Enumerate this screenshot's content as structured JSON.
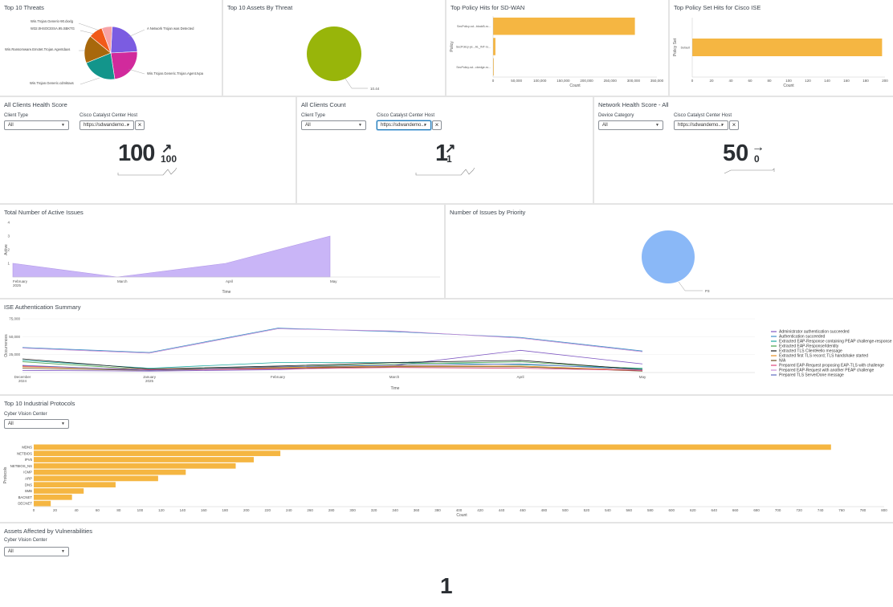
{
  "panels": {
    "top_threats": {
      "title": "Top 10 Threats",
      "labels": [
        "Win.Trojan.Generic-90.dxxlg",
        "W32.0HSOCEISA.95.SBKTG",
        "A Network Trojan was Detected",
        "Win.Ransomware.Emotet.Trojan.Agentdaxs",
        "Win.Trojan.Generic.cdmktaxs",
        "Win.Trojan.Generic.Trojan.Agent.tvpa"
      ],
      "slices": [
        {
          "value": 22,
          "color": "#7b5ce1"
        },
        {
          "value": 22,
          "color": "#d12a9c"
        },
        {
          "value": 20,
          "color": "#13958b"
        },
        {
          "value": 16,
          "color": "#a8680c"
        },
        {
          "value": 8,
          "color": "#f15a19"
        },
        {
          "value": 6,
          "color": "#f7a3a6"
        }
      ]
    },
    "top_assets": {
      "title": "Top 10 Assets By Threat",
      "label": "10.44",
      "color": "#98b50a"
    },
    "policy_sdwan": {
      "title": "Top Policy Hits for SD-WAN",
      "chart_data": {
        "type": "bar",
        "orientation": "horizontal",
        "categories": [
          "SecPolicy-sd...blockB-ro...",
          "SecPolicy-ye...AL_INT-ro...",
          "SecPolicy-sd...ckedge-ro..."
        ],
        "values": [
          303000,
          5000,
          1500
        ],
        "xlabel": "Count",
        "ylabel": "Policy",
        "xlim": [
          0,
          350000
        ],
        "ticks": [
          "0",
          "50,000",
          "100,000",
          "150,000",
          "200,000",
          "250,000",
          "300,000",
          "350,000"
        ]
      }
    },
    "policy_ise": {
      "title": "Top Policy Set Hits for Cisco ISE",
      "chart_data": {
        "type": "bar",
        "orientation": "horizontal",
        "categories": [
          "Default"
        ],
        "values": [
          197
        ],
        "xlabel": "Count",
        "ylabel": "Policy Set",
        "xlim": [
          0,
          200
        ],
        "ticks": [
          "0",
          "20",
          "40",
          "60",
          "80",
          "100",
          "120",
          "140",
          "160",
          "180",
          "200"
        ]
      }
    },
    "clients_health": {
      "title": "All Clients Health Score",
      "filter1_label": "Client Type",
      "filter1_value": "All",
      "filter2_label": "Cisco Catalyst Center Host",
      "filter2_value": "https://sdwandemo...",
      "value": "100",
      "delta": "100",
      "arrow": "↗"
    },
    "clients_count": {
      "title": "All Clients Count",
      "filter1_label": "Client Type",
      "filter1_value": "All",
      "filter2_label": "Cisco Catalyst Center Host",
      "filter2_value": "https://sdwandemo...",
      "value": "1",
      "delta": "1",
      "arrow": "↗"
    },
    "network_health": {
      "title": "Network Health Score - All",
      "filter1_label": "Device Category",
      "filter1_value": "All",
      "filter2_label": "Cisco Catalyst Center Host",
      "filter2_value": "https://sdwandemo...",
      "value": "50",
      "delta": "0",
      "arrow": "→"
    },
    "active_issues": {
      "title": "Total Number of Active Issues",
      "chart_data": {
        "type": "area",
        "x": [
          "February\n2025",
          "March",
          "April",
          "May"
        ],
        "values": [
          1,
          0,
          1,
          3
        ],
        "ylim": [
          0,
          4
        ],
        "yticks": [
          "4",
          "3",
          "2",
          "1"
        ],
        "xlabel": "Time",
        "ylabel": "Active",
        "color": "#c9b5f7"
      }
    },
    "issues_priority": {
      "title": "Number of Issues by Priority",
      "label": "P3",
      "color": "#8ab8f7"
    },
    "ise_auth": {
      "title": "ISE Authentication Summary",
      "chart_data": {
        "type": "line",
        "x": [
          "December\n2024",
          "January\n2025",
          "February",
          "March",
          "April",
          "May"
        ],
        "ylim": [
          0,
          75000
        ],
        "yticks": [
          "75,000",
          "50,000",
          "25,000"
        ],
        "xlabel": "Time",
        "ylabel": "Occurrences",
        "series": [
          {
            "name": "Administrator authentication succeeded",
            "color": "#7e57c2",
            "values": [
              3000,
              2000,
              4000,
              10000,
              31000,
              12000
            ]
          },
          {
            "name": "Authentication succeeded",
            "color": "#3b8ec7",
            "values": [
              35000,
              28000,
              62000,
              57000,
              49000,
              30000
            ]
          },
          {
            "name": "Extracted EAP-Response containing PEAP challenge-response",
            "color": "#1aa89e",
            "values": [
              17000,
              6000,
              14000,
              14000,
              11000,
              6000
            ]
          },
          {
            "name": "Extracted EAP-Response/Identity",
            "color": "#43a047",
            "values": [
              15000,
              4000,
              8000,
              12000,
              15000,
              5000
            ]
          },
          {
            "name": "Extracted TLS ClientHello message",
            "color": "#1b1b1b",
            "values": [
              19000,
              5000,
              9000,
              14000,
              17000,
              4000
            ]
          },
          {
            "name": "Extracted first TLS record; TLS handshake started",
            "color": "#e58f24",
            "values": [
              8000,
              4000,
              7000,
              9000,
              9000,
              3000
            ]
          },
          {
            "name": "N/A",
            "color": "#6d4c1f",
            "values": [
              6000,
              3000,
              6000,
              8000,
              8000,
              2000
            ]
          },
          {
            "name": "Prepared EAP-Request proposing EAP-TLS with challenge",
            "color": "#e0457b",
            "values": [
              9000,
              4000,
              5000,
              7000,
              6000,
              3000
            ]
          },
          {
            "name": "Prepared EAP-Request with another PEAP challenge",
            "color": "#c98fd6",
            "values": [
              34000,
              27000,
              61000,
              58000,
              48000,
              29000
            ]
          },
          {
            "name": "Prepared TLS ServerDone message",
            "color": "#5c6bc0",
            "values": [
              10000,
              3000,
              8000,
              10000,
              12000,
              4000
            ]
          }
        ]
      }
    },
    "industrial": {
      "title": "Top 10 Industrial Protocols",
      "filter_label": "Cyber Vision Center",
      "filter_value": "All",
      "chart_data": {
        "type": "bar",
        "orientation": "horizontal",
        "categories": [
          "MDNS",
          "NETBIOS",
          "IPV6",
          "NETBIOS_NS",
          "ICMP",
          "ARP",
          "DNS",
          "SMB",
          "BACNET",
          "DECNET"
        ],
        "values": [
          750,
          232,
          207,
          190,
          143,
          117,
          77,
          47,
          36,
          16
        ],
        "xlim": [
          0,
          800
        ],
        "tickstep": 20,
        "xlabel": "Count",
        "ylabel": "Protocols"
      }
    },
    "vulnerabilities": {
      "title": "Assets Affected by Vulnerabilities",
      "filter_label": "Cyber Vision Center",
      "filter_value": "All",
      "value": "1"
    }
  }
}
